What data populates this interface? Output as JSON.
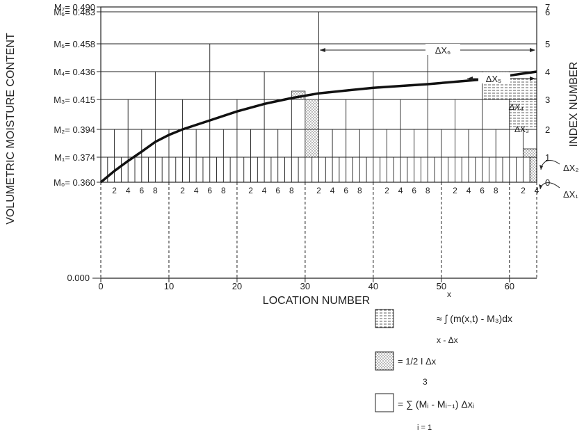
{
  "figure": {
    "ylabel_left": "VOLUMETRIC MOISTURE CONTENT",
    "ylabel_right": "INDEX NUMBER",
    "xlabel": "LOCATION NUMBER",
    "m_levels": [
      {
        "label": "M₀= 0.360",
        "value": 0.36,
        "index": "0"
      },
      {
        "label": "M₁= 0.374",
        "value": 0.374,
        "index": "1"
      },
      {
        "label": "M₂= 0.394",
        "value": 0.394,
        "index": "2"
      },
      {
        "label": "M₃= 0.415",
        "value": 0.415,
        "index": "3"
      },
      {
        "label": "M₄= 0.436",
        "value": 0.436,
        "index": "4"
      },
      {
        "label": "M₅= 0.458",
        "value": 0.458,
        "index": "5"
      },
      {
        "label": "M₆= 0.483",
        "value": 0.483,
        "index": "6"
      },
      {
        "label": "M₇= 0.490",
        "value": 0.49,
        "index": "7"
      }
    ],
    "zero_label": "0.000",
    "x_ticks": [
      "0",
      "10",
      "20",
      "30",
      "40",
      "50",
      "60"
    ],
    "x_sub_ticks": [
      "2",
      "4",
      "6",
      "8"
    ],
    "x_sub_ticks_last": [
      "2",
      "4"
    ],
    "delta_labels": {
      "dx1": "ΔX₁",
      "dx2": "ΔX₂",
      "dx3": "ΔX₃",
      "dx4": "ΔX₄",
      "dx5": "ΔX₅",
      "dx6": "ΔX₆"
    },
    "curve": {
      "x": [
        0,
        2,
        4,
        6,
        8,
        10,
        12,
        16,
        20,
        24,
        28,
        32,
        40,
        48,
        56,
        64
      ],
      "index": [
        0,
        0.45,
        0.85,
        1.2,
        1.55,
        1.8,
        2.0,
        2.3,
        2.6,
        2.85,
        3.05,
        3.22,
        3.42,
        3.55,
        3.72,
        4.0
      ]
    }
  },
  "legend": {
    "integral_upper": "x",
    "integral_expr": "≈ ∫ (m(x,t) - M₃)dx",
    "integral_lower": "x - Δx",
    "triangle_expr": "= 1/2 I Δx",
    "sum_upper": "3",
    "sum_expr": "= ∑ (Mᵢ - Mᵢ₋₁) Δxᵢ",
    "sum_lower": "i = 1"
  }
}
